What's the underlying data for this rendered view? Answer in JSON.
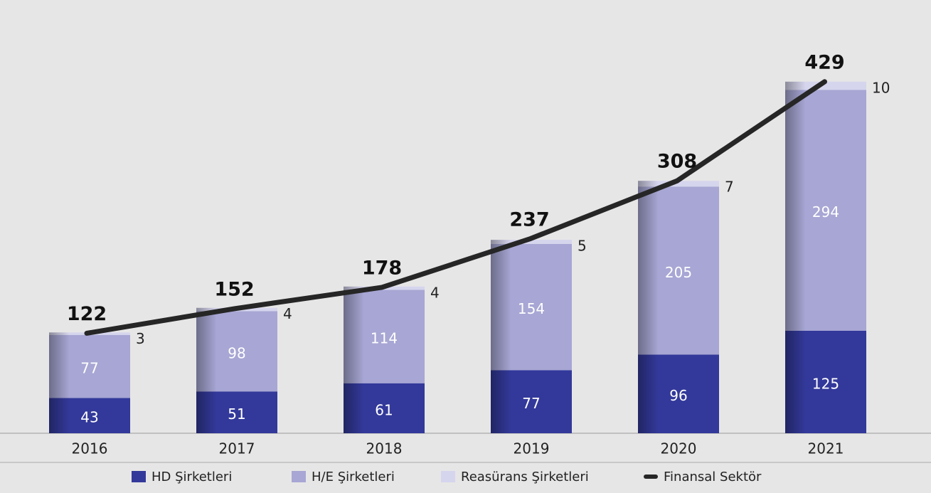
{
  "chart_data": {
    "type": "bar",
    "categories": [
      "2016",
      "2017",
      "2018",
      "2019",
      "2020",
      "2021"
    ],
    "series": [
      {
        "name": "HD Şirketleri",
        "color": "#33399a",
        "values": [
          43,
          51,
          61,
          77,
          96,
          125
        ]
      },
      {
        "name": "H/E Şirketleri",
        "color": "#a7a6d4",
        "values": [
          77,
          98,
          114,
          154,
          205,
          294
        ]
      },
      {
        "name": "Reasürans Şirketleri",
        "color": "#d6d5ee",
        "values": [
          3,
          4,
          4,
          5,
          7,
          10
        ]
      },
      {
        "name": "Finansal Sektör",
        "color": "#262626",
        "type": "line",
        "values": [
          122,
          152,
          178,
          237,
          308,
          429
        ]
      }
    ]
  }
}
